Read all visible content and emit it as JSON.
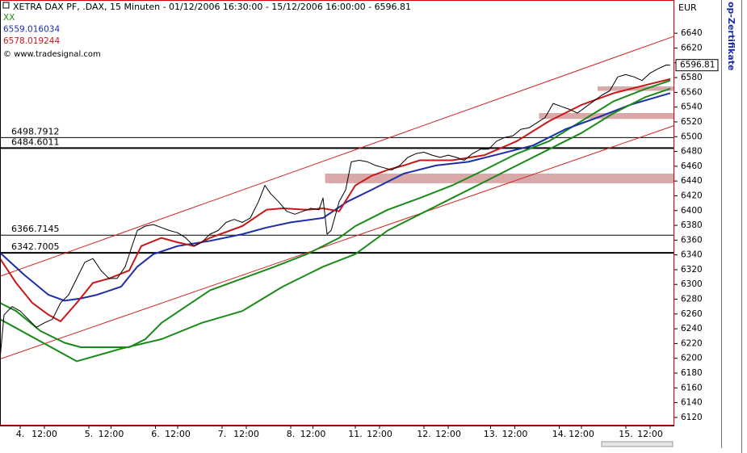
{
  "chart_data": {
    "type": "line",
    "title": "XETRA DAX PF, .DAX, 15 Minuten - 01/12/2006 16:30:00 - 15/12/2006 16:00:00 - 6596.81",
    "copyright": "© www.tradesignal.com",
    "currency": "EUR",
    "side_label": "op-Zertifikate",
    "xlim": [
      0,
      334
    ],
    "ylim": [
      6109,
      6685
    ],
    "yticks": [
      6120,
      6140,
      6160,
      6180,
      6200,
      6220,
      6240,
      6260,
      6280,
      6300,
      6320,
      6340,
      6360,
      6380,
      6400,
      6420,
      6440,
      6460,
      6480,
      6500,
      6520,
      6540,
      6560,
      6580,
      6600,
      6620,
      6640
    ],
    "xticks": [
      {
        "value": 10,
        "label": "4."
      },
      {
        "value": 22,
        "label": "12:00"
      },
      {
        "value": 44,
        "label": "5."
      },
      {
        "value": 55,
        "label": "12:00"
      },
      {
        "value": 77,
        "label": "6."
      },
      {
        "value": 88,
        "label": "12:00"
      },
      {
        "value": 110,
        "label": "7."
      },
      {
        "value": 122,
        "label": "12:00"
      },
      {
        "value": 144,
        "label": "8."
      },
      {
        "value": 155,
        "label": "12:00"
      },
      {
        "value": 176,
        "label": "11."
      },
      {
        "value": 188,
        "label": "12:00"
      },
      {
        "value": 210,
        "label": "12."
      },
      {
        "value": 222,
        "label": "12:00"
      },
      {
        "value": 243,
        "label": "13."
      },
      {
        "value": 255,
        "label": "12:00"
      },
      {
        "value": 277,
        "label": "14."
      },
      {
        "value": 288,
        "label": "12:00"
      },
      {
        "value": 310,
        "label": "15."
      },
      {
        "value": 322,
        "label": "12:00"
      }
    ],
    "grid": false,
    "series": [
      {
        "color": "#000000",
        "width": 1,
        "x": [
          0,
          2,
          6,
          10,
          14,
          18,
          22,
          26,
          30,
          34,
          38,
          42,
          46,
          50,
          54,
          58,
          62,
          66,
          68,
          72,
          76,
          80,
          84,
          88,
          92,
          96,
          100,
          104,
          108,
          112,
          116,
          120,
          124,
          128,
          131.2,
          134,
          138,
          142,
          146,
          150,
          154,
          158,
          160,
          162,
          164,
          168,
          171.2,
          174,
          178,
          182,
          186,
          190,
          194,
          198,
          202,
          206,
          210,
          214,
          218,
          222,
          226,
          230,
          234,
          238,
          242,
          246,
          250,
          254,
          258,
          262,
          266,
          270,
          274,
          278,
          282,
          286,
          290,
          294,
          298,
          302,
          306,
          310,
          314,
          318,
          322,
          326,
          330,
          332
        ],
        "values": [
          6199,
          6259,
          6270,
          6264,
          6253,
          6242,
          6248,
          6253,
          6275,
          6286,
          6308,
          6330,
          6335,
          6319,
          6308,
          6308,
          6324,
          6357,
          6373,
          6379,
          6381,
          6377,
          6373,
          6370,
          6363,
          6352,
          6357,
          6368,
          6373,
          6384,
          6388,
          6384,
          6390,
          6412,
          6434,
          6423,
          6412,
          6399,
          6395,
          6399,
          6403,
          6401,
          6417,
          6368,
          6373,
          6412,
          6428,
          6466,
          6468,
          6466,
          6461,
          6458,
          6455,
          6461,
          6472,
          6477,
          6479,
          6475,
          6472,
          6475,
          6472,
          6468,
          6477,
          6483,
          6483,
          6494,
          6499,
          6501,
          6510,
          6512,
          6519,
          6526,
          6545,
          6541,
          6537,
          6532,
          6540,
          6548,
          6556,
          6562,
          6581,
          6584,
          6581,
          6576,
          6586,
          6592,
          6597,
          6596.81
        ]
      },
      {
        "name": "XX",
        "color": "#1a8a1a",
        "width": 2,
        "x": [
          0,
          8,
          20,
          32,
          40,
          52,
          64,
          72,
          80,
          92,
          104,
          120,
          136,
          152,
          168,
          176,
          192,
          208,
          224,
          240,
          256,
          272,
          288,
          304,
          320,
          332
        ],
        "values": [
          6275,
          6264,
          6237,
          6221,
          6215,
          6215,
          6215,
          6226,
          6248,
          6270,
          6292,
          6308,
          6324,
          6341,
          6363,
          6379,
          6401,
          6417,
          6434,
          6455,
          6477,
          6494,
          6521,
          6548,
          6565,
          6576
        ]
      },
      {
        "name": "6559.016034",
        "color": "#1c2ea8",
        "width": 2,
        "x": [
          0,
          12,
          24,
          32,
          40,
          48,
          60,
          68,
          76,
          88,
          104,
          120,
          132,
          144,
          160,
          172,
          184,
          200,
          216,
          232,
          248,
          264,
          280,
          296,
          312,
          332
        ],
        "values": [
          6343,
          6313,
          6286,
          6278,
          6281,
          6286,
          6297,
          6324,
          6341,
          6352,
          6359,
          6368,
          6377,
          6384,
          6390,
          6412,
          6428,
          6450,
          6461,
          6466,
          6477,
          6488,
          6510,
          6526,
          6543,
          6559.02
        ]
      },
      {
        "name": "6578.019244",
        "color": "#c81818",
        "width": 2,
        "x": [
          0,
          8,
          16,
          24,
          30,
          38,
          46,
          54,
          64,
          70,
          80,
          88,
          96,
          104,
          120,
          132,
          140,
          152,
          160,
          168,
          176,
          184,
          192,
          200,
          208,
          224,
          240,
          256,
          272,
          288,
          304,
          320,
          332
        ],
        "values": [
          6335,
          6302,
          6275,
          6259,
          6250,
          6275,
          6302,
          6308,
          6319,
          6352,
          6363,
          6357,
          6352,
          6363,
          6379,
          6401,
          6403,
          6401,
          6403,
          6399,
          6434,
          6447,
          6455,
          6461,
          6468,
          6468,
          6475,
          6494,
          6521,
          6543,
          6559,
          6570,
          6578.02
        ]
      },
      {
        "color": "#1a8a1a",
        "width": 2,
        "x": [
          0,
          38,
          60,
          80,
          100,
          120,
          140,
          160,
          176,
          192,
          208,
          224,
          240,
          256,
          272,
          288,
          304,
          320,
          332
        ],
        "values": [
          6253,
          6196,
          6213,
          6226,
          6248,
          6264,
          6297,
          6324,
          6341,
          6373,
          6395,
          6417,
          6439,
          6461,
          6483,
          6505,
          6532,
          6554,
          6565
        ]
      }
    ],
    "channel_color": "#d42020",
    "channel": [
      {
        "x": [
          0,
          334
        ],
        "values": [
          6311,
          6636
        ]
      },
      {
        "x": [
          0,
          334
        ],
        "values": [
          6199,
          6515
        ]
      }
    ],
    "levels": [
      6498.7912,
      6484.6011,
      6366.7145,
      6342.7005
    ],
    "level_widths": [
      1,
      2,
      1,
      2
    ],
    "zone_color": "#d9a9a9",
    "zones": [
      {
        "from": 6437,
        "to": 6450,
        "x": 161
      },
      {
        "from": 6524,
        "to": 6532,
        "x": 267
      },
      {
        "from": 6562,
        "to": 6568,
        "x": 296
      }
    ]
  }
}
